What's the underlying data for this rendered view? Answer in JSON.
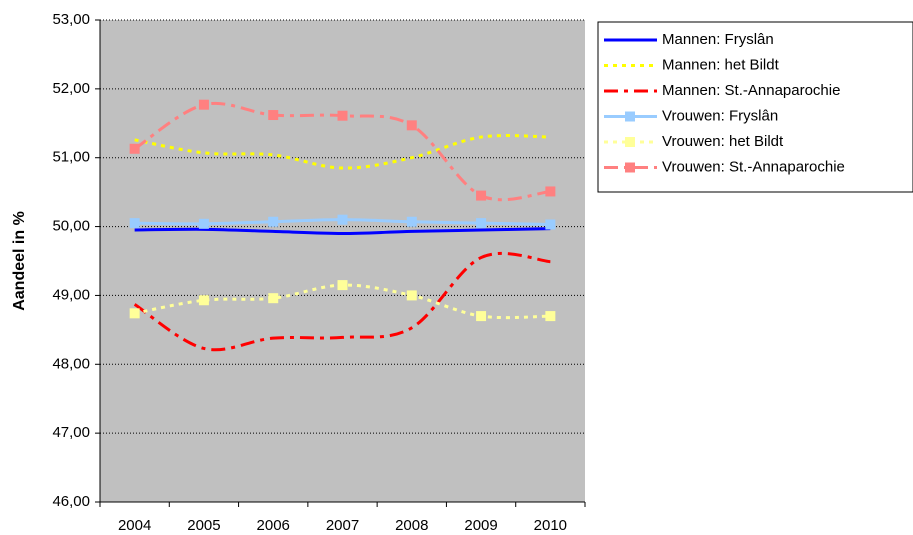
{
  "chart_data": {
    "type": "line",
    "y_label": "Aandeel in %",
    "categories": [
      "2004",
      "2005",
      "2006",
      "2007",
      "2008",
      "2009",
      "2010"
    ],
    "ylim": [
      46,
      53
    ],
    "yticks": [
      {
        "value": 46,
        "label": "46,00"
      },
      {
        "value": 47,
        "label": "47,00"
      },
      {
        "value": 48,
        "label": "48,00"
      },
      {
        "value": 49,
        "label": "49,00"
      },
      {
        "value": 50,
        "label": "50,00"
      },
      {
        "value": 51,
        "label": "51,00"
      },
      {
        "value": 52,
        "label": "52,00"
      },
      {
        "value": 53,
        "label": "53,00"
      }
    ],
    "grid": true,
    "legend": "right",
    "series": [
      {
        "name": "Mannen: Fryslân",
        "color": "#0000ff",
        "line_style": "solid",
        "marker": "none",
        "values": [
          49.95,
          49.96,
          49.93,
          49.9,
          49.93,
          49.95,
          49.97
        ]
      },
      {
        "name": "Mannen: het Bildt",
        "color": "#ffff00",
        "line_style": "dotted",
        "marker": "none",
        "values": [
          51.26,
          51.07,
          51.04,
          50.85,
          51.0,
          51.3,
          51.3
        ]
      },
      {
        "name": "Mannen: St.-Annaparochie",
        "color": "#ff0000",
        "line_style": "dashdot",
        "marker": "none",
        "values": [
          48.87,
          48.23,
          48.38,
          48.39,
          48.53,
          49.55,
          49.49
        ]
      },
      {
        "name": "Vrouwen: Fryslân",
        "color": "#99ccff",
        "line_style": "solid",
        "marker": "square",
        "values": [
          50.05,
          50.04,
          50.07,
          50.1,
          50.07,
          50.05,
          50.03
        ]
      },
      {
        "name": "Vrouwen: het Bildt",
        "color": "#ffff99",
        "line_style": "dotted",
        "marker": "square",
        "values": [
          48.74,
          48.93,
          48.96,
          49.15,
          49.0,
          48.7,
          48.7
        ]
      },
      {
        "name": "Vrouwen: St.-Annaparochie",
        "color": "#ff8080",
        "line_style": "dashdot",
        "marker": "square",
        "values": [
          51.13,
          51.77,
          51.62,
          51.61,
          51.47,
          50.45,
          50.51
        ]
      }
    ]
  }
}
